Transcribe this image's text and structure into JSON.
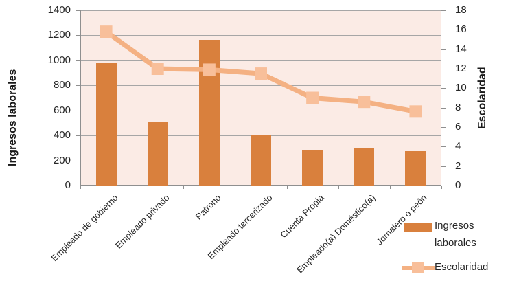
{
  "chart_data": {
    "type": "combo-bar-line",
    "title": "",
    "categories": [
      "Empleado de gobierno",
      "Empleado privado",
      "Patrono",
      "Empleado tercerizado",
      "Cuenta Propia",
      "Empleado(a) Doméstico(a)",
      "Jornalero o peón"
    ],
    "series": [
      {
        "name": "Ingresos laborales",
        "type": "bar",
        "axis": "left",
        "values": [
          975,
          510,
          1165,
          405,
          285,
          300,
          275
        ]
      },
      {
        "name": "Escolaridad",
        "type": "line",
        "axis": "right",
        "values": [
          15.8,
          12.0,
          11.9,
          11.5,
          9.0,
          8.6,
          7.6
        ]
      }
    ],
    "left_axis": {
      "label": "Ingresos laborales",
      "min": 0,
      "max": 1400,
      "step": 200,
      "ticks": [
        "0",
        "200",
        "400",
        "600",
        "800",
        "1000",
        "1200",
        "1400"
      ]
    },
    "right_axis": {
      "label": "Escolaridad",
      "min": 0,
      "max": 18,
      "step": 2,
      "ticks": [
        "0",
        "2",
        "4",
        "6",
        "8",
        "10",
        "12",
        "14",
        "16",
        "18"
      ]
    },
    "grid": true,
    "legend_position": "bottom-right"
  },
  "legend": {
    "bar_label": "Ingresos laborales",
    "line_label": "Escolaridad"
  },
  "colors": {
    "bar": "#D9803D",
    "line": "#F4B183",
    "marker": "#F8BF9A",
    "plot_bg": "#FBEBE5",
    "gridline": "#A6A6A6",
    "axis_line": "#8F8F8F"
  }
}
